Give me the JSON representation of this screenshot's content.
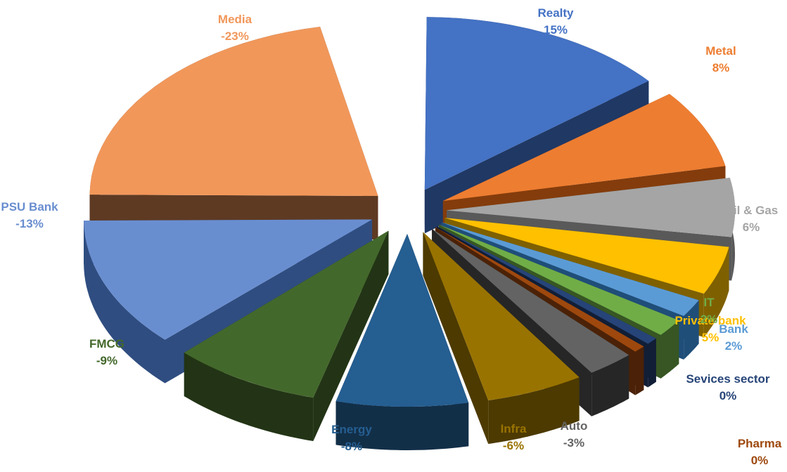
{
  "chart_data": {
    "type": "pie",
    "style": "3d-exploded",
    "title": "",
    "slices": [
      {
        "label": "Realty",
        "value_text": "15%",
        "value": 15,
        "color": "#4472C4",
        "side": "#203864",
        "label_color": "#4472C4"
      },
      {
        "label": "Metal",
        "value_text": "8%",
        "value": 8,
        "color": "#ED7D31",
        "side": "#843C0C",
        "label_color": "#ED7D31"
      },
      {
        "label": "Oil & Gas",
        "value_text": "6%",
        "value": 6,
        "color": "#A5A5A5",
        "side": "#595959",
        "label_color": "#A5A5A5"
      },
      {
        "label": "Private bank",
        "value_text": "5%",
        "value": 5,
        "color": "#FFC000",
        "side": "#7F6000",
        "label_color": "#FFC000"
      },
      {
        "label": "Bank",
        "value_text": "2%",
        "value": 2,
        "color": "#5B9BD5",
        "side": "#1F4E79",
        "label_color": "#5B9BD5"
      },
      {
        "label": "IT",
        "value_text": "2%",
        "value": 2,
        "color": "#70AD47",
        "side": "#375623",
        "label_color": "#70AD47"
      },
      {
        "label": "Sevices sector",
        "value_text": "0%",
        "value": 0,
        "color": "#264478",
        "side": "#111E36",
        "label_color": "#264478"
      },
      {
        "label": "Pharma",
        "value_text": "0%",
        "value": 0,
        "color": "#9E480E",
        "side": "#4B2207",
        "label_color": "#9E480E"
      },
      {
        "label": "Auto",
        "value_text": "-3%",
        "value": -3,
        "color": "#636363",
        "side": "#262626",
        "label_color": "#636363"
      },
      {
        "label": "Infra",
        "value_text": "-6%",
        "value": -6,
        "color": "#997300",
        "side": "#4D3A00",
        "label_color": "#997300"
      },
      {
        "label": "Energy",
        "value_text": "-8%",
        "value": -8,
        "color": "#255E91",
        "side": "#122F48",
        "label_color": "#255E91"
      },
      {
        "label": "FMCG",
        "value_text": "-9%",
        "value": -9,
        "color": "#43682B",
        "side": "#223415",
        "label_color": "#43682B"
      },
      {
        "label": "PSU Bank",
        "value_text": "-13%",
        "value": -13,
        "color": "#698ED0",
        "side": "#2F4D80",
        "label_color": "#698ED0"
      },
      {
        "label": "Media",
        "value_text": "-23%",
        "value": -23,
        "color": "#F1975A",
        "side": "#5E3A23",
        "label_color": "#F1975A"
      }
    ]
  }
}
